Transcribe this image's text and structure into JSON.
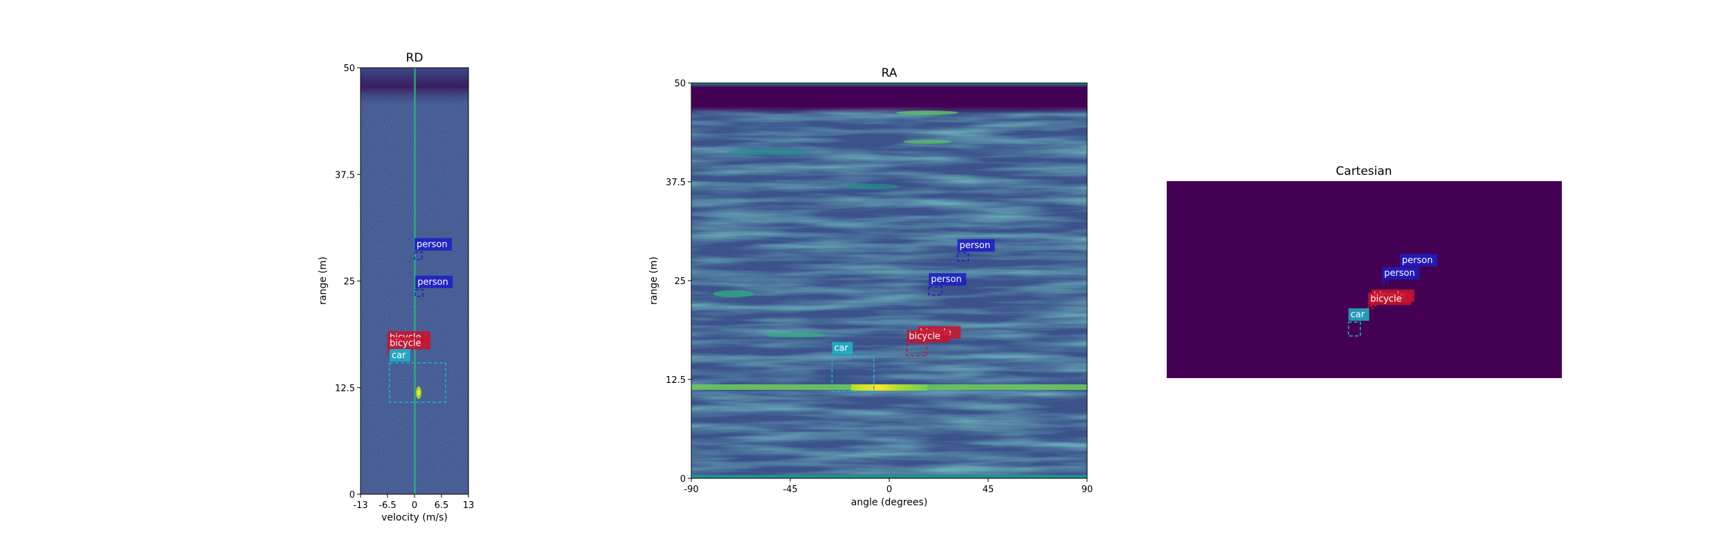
{
  "colors": {
    "person": "#1c1cc8",
    "bicycle": "#c8142d",
    "car": "#1eb4c8",
    "map_dark": "#440154",
    "map_mid": "#3b528b",
    "map_light": "#21908c",
    "map_high": "#fde725"
  },
  "chart_data": [
    {
      "type": "heatmap",
      "title": "RD",
      "xlabel": "velocity (m/s)",
      "ylabel": "range (m)",
      "xlim": [
        -13,
        13
      ],
      "ylim": [
        0,
        50
      ],
      "xticks": [
        "-13",
        "-6.5",
        "0",
        "6.5",
        "13"
      ],
      "yticks": [
        "0",
        "12.5",
        "25",
        "37.5",
        "50"
      ],
      "detections": [
        {
          "label": "person",
          "x0": 0.0,
          "x1": 1.8,
          "y0": 27.5,
          "y1": 28.4
        },
        {
          "label": "person",
          "x0": 0.2,
          "x1": 2.0,
          "y0": 23.2,
          "y1": 24.0
        },
        {
          "label": "bicycle",
          "x0": -6.5,
          "x1": -5.8,
          "y0": 17.0,
          "y1": 17.5
        },
        {
          "label": "bicycle",
          "x0": -6.5,
          "x1": -5.8,
          "y0": 16.3,
          "y1": 16.8
        },
        {
          "label": "car",
          "x0": -6.0,
          "x1": 7.5,
          "y0": 10.8,
          "y1": 15.4
        }
      ]
    },
    {
      "type": "heatmap",
      "title": "RA",
      "xlabel": "angle (degrees)",
      "ylabel": "range (m)",
      "xlim": [
        -90,
        90
      ],
      "ylim": [
        0,
        50
      ],
      "xticks": [
        "-90",
        "-45",
        "0",
        "45",
        "90"
      ],
      "yticks": [
        "0",
        "12.5",
        "25",
        "37.5",
        "50"
      ],
      "detections": [
        {
          "label": "person",
          "x0": 31,
          "x1": 36,
          "y0": 27.5,
          "y1": 28.5
        },
        {
          "label": "person",
          "x0": 18,
          "x1": 24,
          "y0": 23.2,
          "y1": 24.2
        },
        {
          "label": "bicycle",
          "x0": 13,
          "x1": 16,
          "y0": 17.0,
          "y1": 17.5
        },
        {
          "label": "bicycle",
          "x0": 8,
          "x1": 17,
          "y0": 15.5,
          "y1": 17.0
        },
        {
          "label": "car",
          "x0": -26,
          "x1": -7,
          "y0": 11.0,
          "y1": 15.5
        }
      ]
    },
    {
      "type": "heatmap",
      "title": "Cartesian",
      "xlim": [
        -50,
        50
      ],
      "ylim": [
        0,
        50
      ],
      "detections": [
        {
          "label": "person",
          "x0": 9.0,
          "x1": 10.5,
          "y0": 27.3,
          "y1": 28.0
        },
        {
          "label": "person",
          "x0": 4.5,
          "x1": 6.0,
          "y0": 24.0,
          "y1": 24.7
        },
        {
          "label": "bicycle",
          "x0": 1.8,
          "x1": 3.0,
          "y0": 18.4,
          "y1": 19.0
        },
        {
          "label": "bicycle",
          "x0": 1.0,
          "x1": 2.2,
          "y0": 17.6,
          "y1": 18.2
        },
        {
          "label": "car",
          "x0": -4.0,
          "x1": -1.0,
          "y0": 10.7,
          "y1": 14.2
        }
      ]
    }
  ]
}
